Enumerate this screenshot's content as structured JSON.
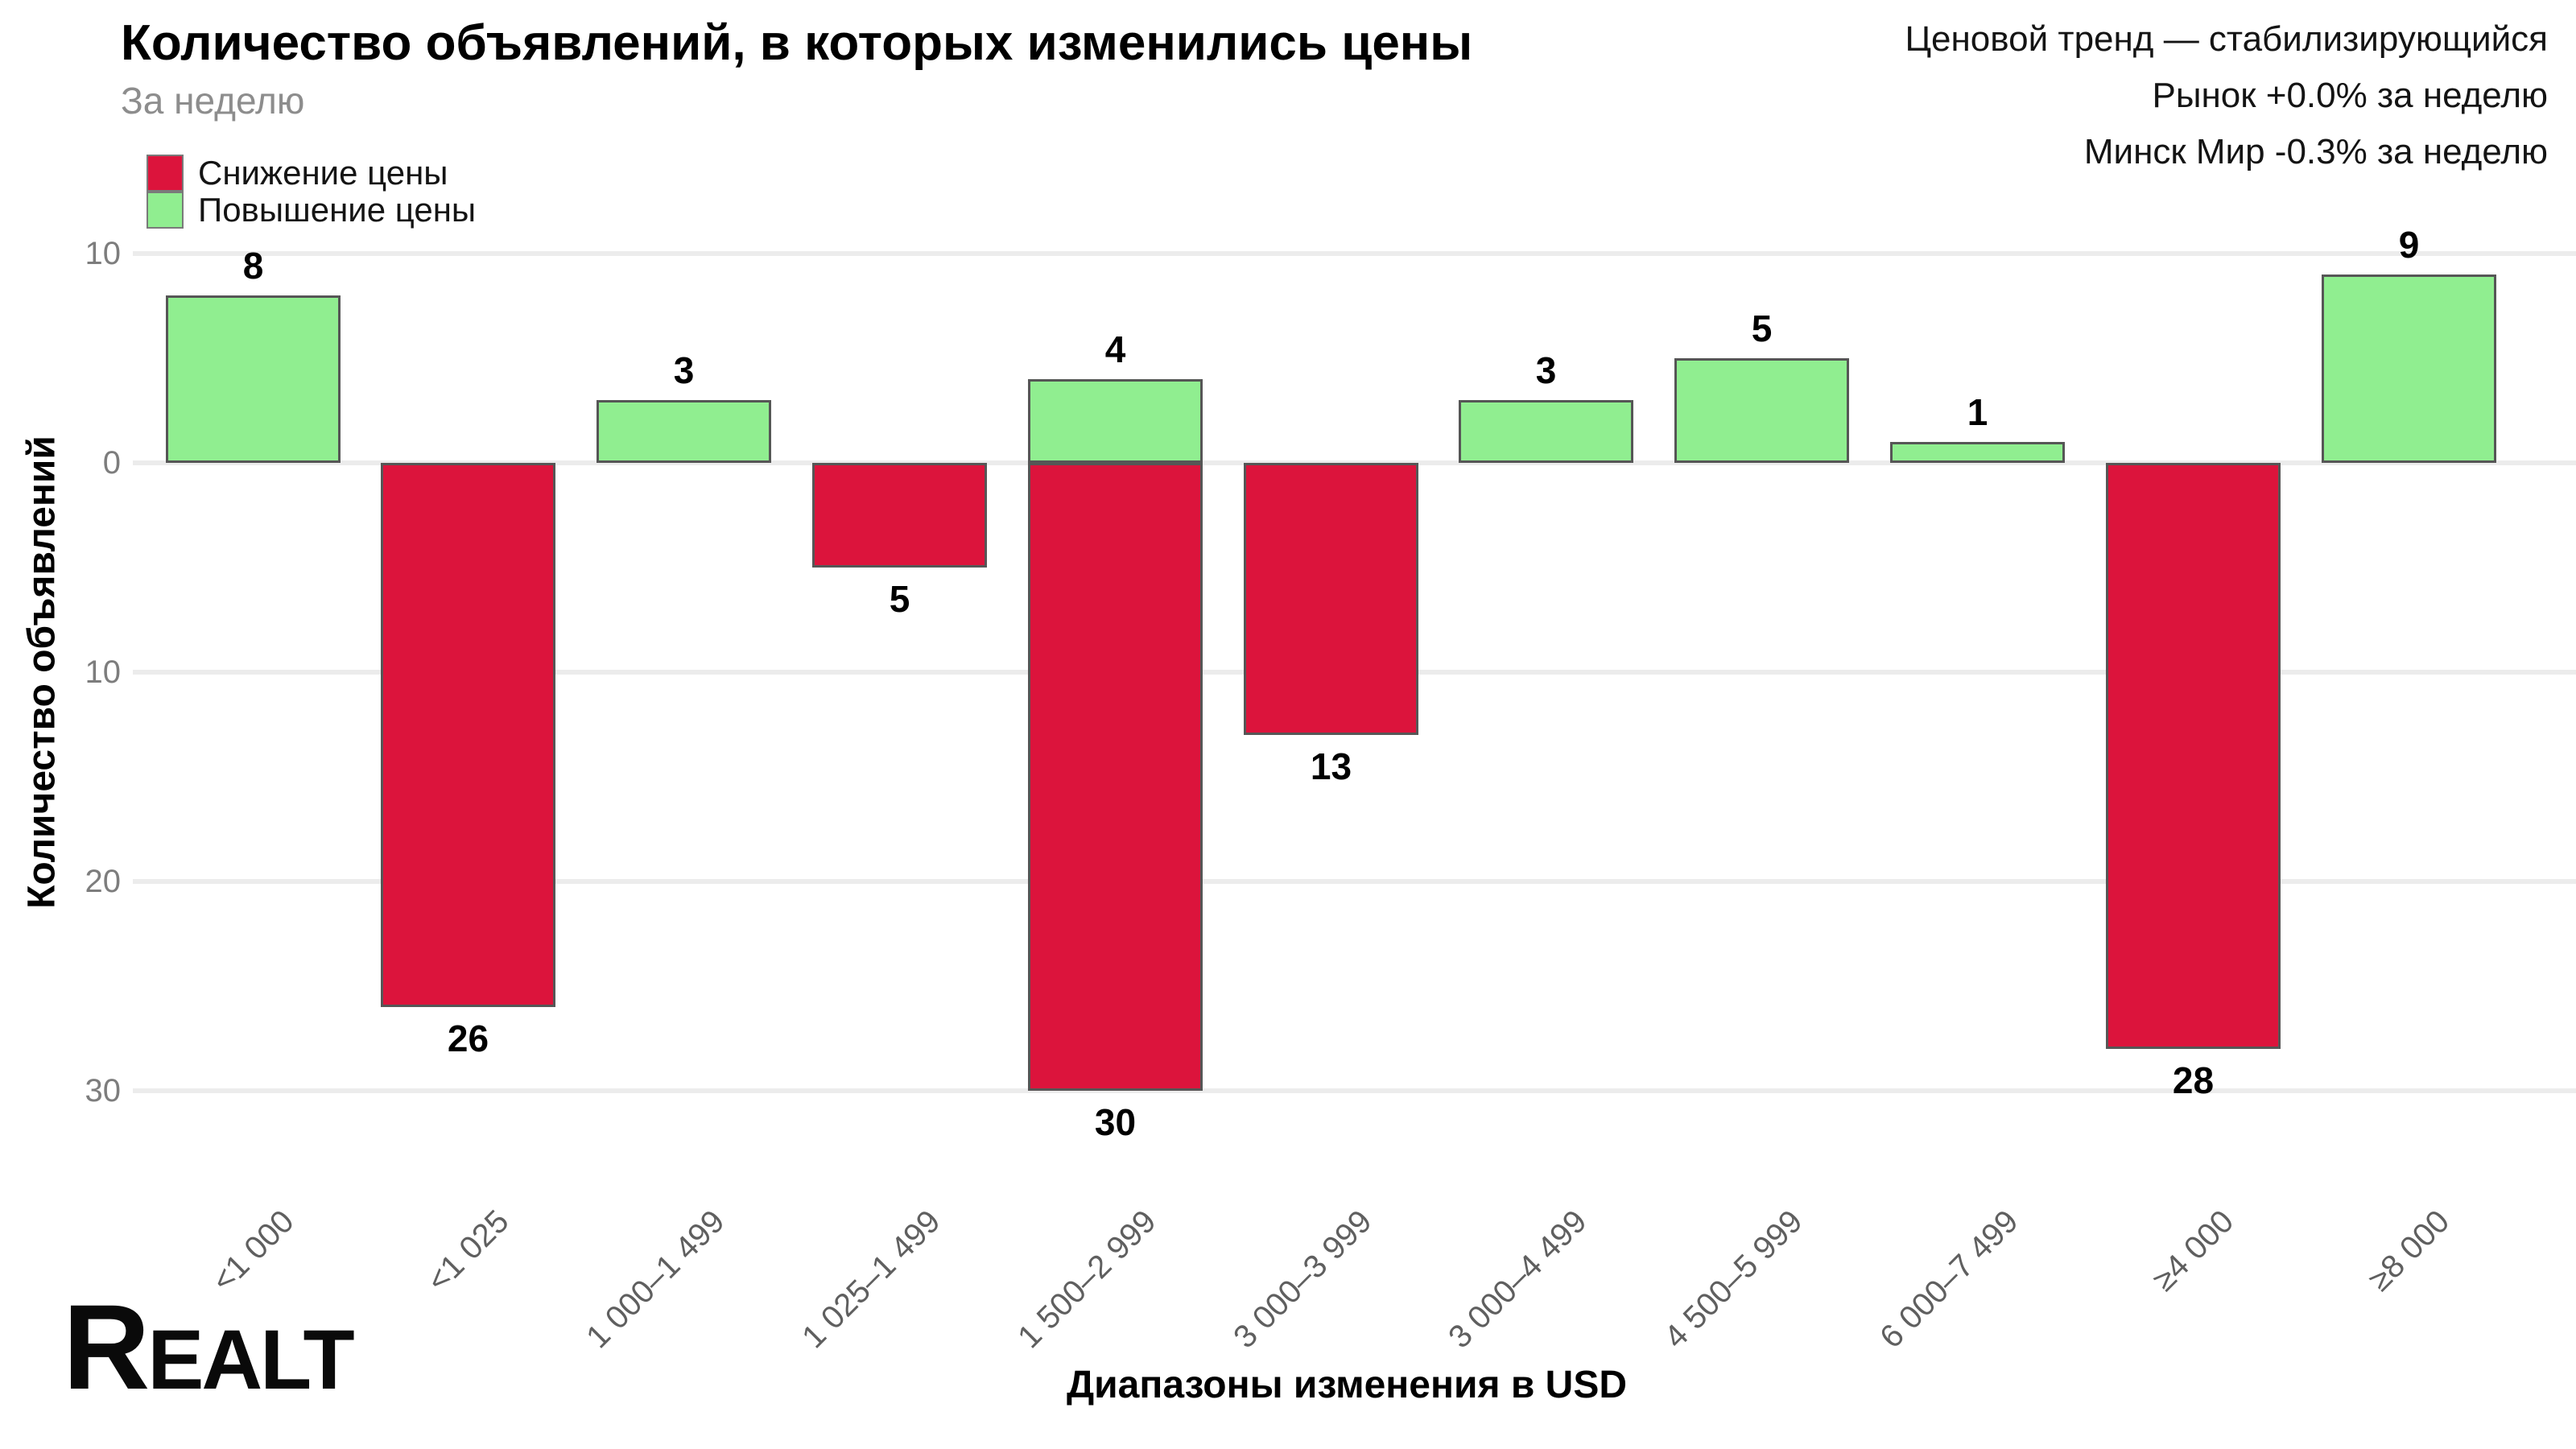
{
  "header": {
    "title": "Количество объявлений, в которых изменились цены",
    "subtitle": "За неделю"
  },
  "trend": {
    "line1": "Ценовой тренд — стабилизирующийся",
    "line2": "Рынок +0.0% за неделю",
    "line3": "Минск Мир -0.3% за неделю"
  },
  "legend": [
    {
      "label": "Снижение цены",
      "color": "#DC143C"
    },
    {
      "label": "Повышение цены",
      "color": "#90EE90"
    }
  ],
  "axes": {
    "y_title": "Количество объявлений",
    "x_title": "Диапазоны изменения в USD",
    "y_ticks": [
      {
        "value": 10,
        "label": "10"
      },
      {
        "value": 0,
        "label": "0"
      },
      {
        "value": -10,
        "label": "10"
      },
      {
        "value": -20,
        "label": "20"
      },
      {
        "value": -30,
        "label": "30"
      }
    ]
  },
  "logo": "Realt",
  "chart_data": {
    "type": "bar",
    "title": "Количество объявлений, в которых изменились цены",
    "subtitle": "За неделю",
    "xlabel": "Диапазоны изменения в USD",
    "ylabel": "Количество объявлений",
    "ylim": [
      -30,
      10
    ],
    "grid": true,
    "y_axis_labels_absolute": true,
    "legend_position": "top-left",
    "categories": [
      "<1 000",
      "<1 025",
      "1 000–1 499",
      "1 025–1 499",
      "1 500–2 999",
      "3 000–3 999",
      "3 000–4 499",
      "4 500–5 999",
      "6 000–7 499",
      "≥4 000",
      "≥8 000"
    ],
    "series": [
      {
        "name": "Снижение цены",
        "color": "#DC143C",
        "direction": "down",
        "values": [
          null,
          26,
          null,
          5,
          30,
          13,
          null,
          null,
          null,
          28,
          null
        ]
      },
      {
        "name": "Повышение цены",
        "color": "#90EE90",
        "direction": "up",
        "values": [
          8,
          null,
          3,
          null,
          4,
          null,
          3,
          5,
          1,
          null,
          9
        ]
      }
    ]
  }
}
